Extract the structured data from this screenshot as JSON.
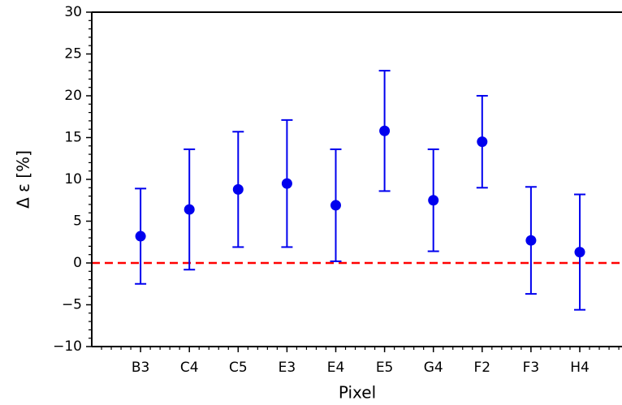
{
  "chart_data": {
    "type": "errorbar",
    "x_label": "Pixel",
    "y_label": "Δ ε [%]",
    "categories": [
      "B3",
      "C4",
      "C5",
      "E3",
      "E4",
      "E5",
      "G4",
      "F2",
      "F3",
      "H4"
    ],
    "series": [
      {
        "color": "#0000ee",
        "values": [
          3.2,
          6.4,
          8.8,
          9.5,
          6.9,
          15.8,
          7.5,
          14.5,
          2.7,
          1.3
        ],
        "errors": [
          5.7,
          7.2,
          6.9,
          7.6,
          6.7,
          7.2,
          6.1,
          5.5,
          6.4,
          6.9
        ]
      }
    ],
    "reference_line": {
      "y": 0,
      "color": "#ff0000",
      "style": "dashed"
    },
    "ylim": [
      -10,
      30
    ],
    "yticks": [
      {
        "value": -10,
        "label": "−10"
      },
      {
        "value": -5,
        "label": "−5"
      },
      0,
      5,
      10,
      15,
      20,
      25,
      30
    ]
  }
}
